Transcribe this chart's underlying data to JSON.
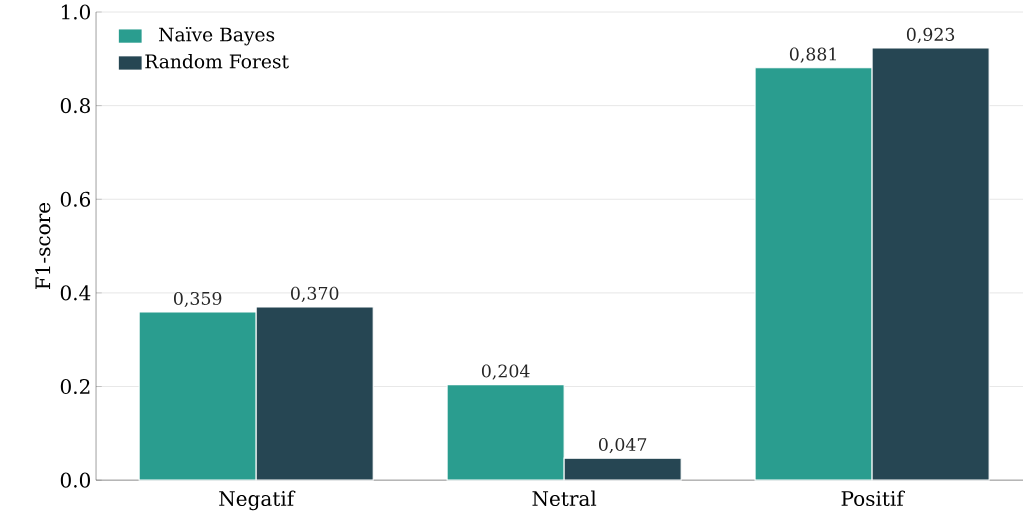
{
  "chart_data": {
    "type": "bar",
    "ylabel": "F1-score",
    "categories": [
      "Negatif",
      "Netral",
      "Positif"
    ],
    "series": [
      {
        "name": "Naïve Bayes",
        "color": "#2a9d8f",
        "values": [
          0.359,
          0.204,
          0.881
        ],
        "value_labels": [
          "0,359",
          "0,204",
          "0,881"
        ]
      },
      {
        "name": "Random Forest",
        "color": "#264653",
        "values": [
          0.37,
          0.047,
          0.923
        ],
        "value_labels": [
          "0,370",
          "0,047",
          "0,923"
        ]
      }
    ],
    "ylim": [
      0,
      1
    ],
    "yticks": [
      {
        "value": 0,
        "label": "0.0"
      },
      0.2,
      0.4,
      0.6,
      0.8,
      {
        "value": 1,
        "label": "1.0"
      }
    ],
    "grid": "y",
    "legend": "top left"
  }
}
